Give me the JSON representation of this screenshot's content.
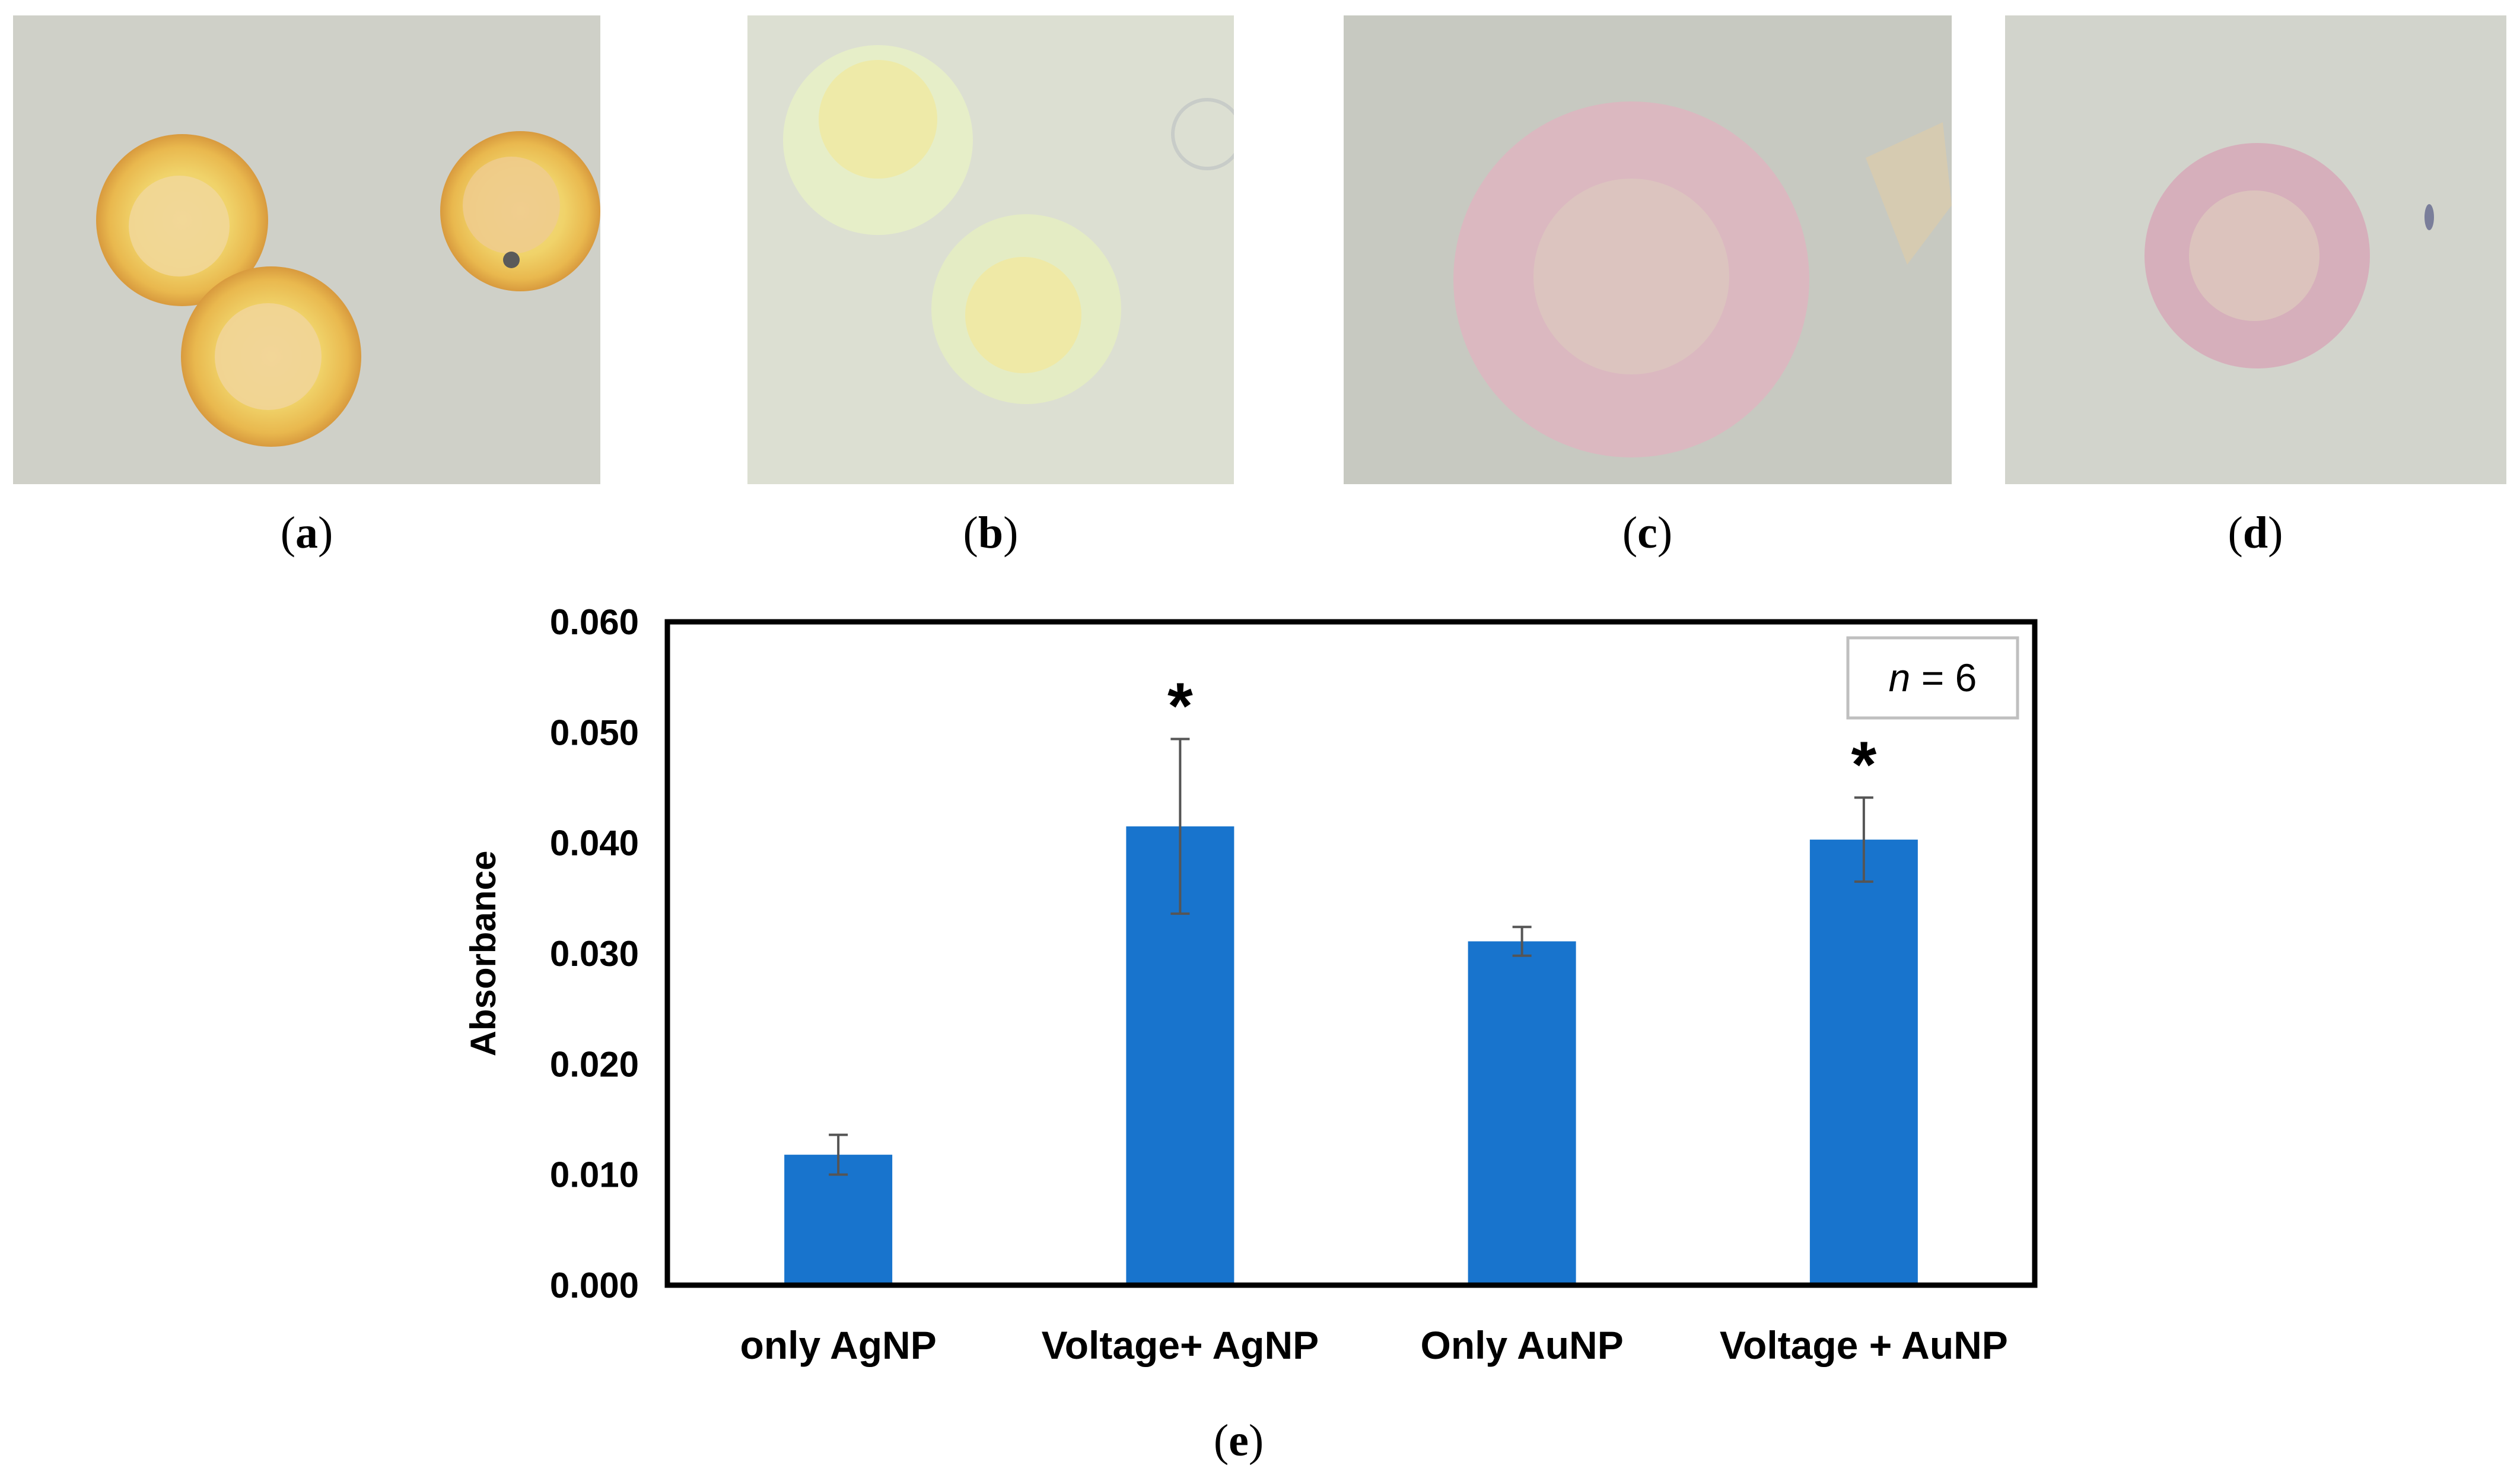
{
  "panels": {
    "a": {
      "label": "a",
      "description_icon": "droplet-photo"
    },
    "b": {
      "label": "b",
      "description_icon": "droplet-photo"
    },
    "c": {
      "label": "c",
      "description_icon": "droplet-photo"
    },
    "d": {
      "label": "d",
      "description_icon": "droplet-photo"
    },
    "e": {
      "label": "e"
    }
  },
  "colors": {
    "bar": "#1874cd",
    "error_bar": "#555555",
    "axis": "#000000",
    "legend_border": "#bfbfbf"
  },
  "chart_data": {
    "type": "bar",
    "title": "",
    "xlabel": "",
    "ylabel": "Absorbance",
    "categories": [
      "only AgNP",
      "Voltage+ AgNP",
      "Only AuNP",
      "Voltage + AuNP"
    ],
    "values": [
      0.0118,
      0.0415,
      0.0311,
      0.0403
    ],
    "errors": [
      0.0018,
      0.0079,
      0.0013,
      0.0038
    ],
    "significance": [
      "",
      "*",
      "",
      "*"
    ],
    "ylim": [
      0,
      0.06
    ],
    "yticks": [
      "0.000",
      "0.010",
      "0.020",
      "0.030",
      "0.040",
      "0.050",
      "0.060"
    ],
    "ytick_values": [
      0,
      0.01,
      0.02,
      0.03,
      0.04,
      0.05,
      0.06
    ],
    "legend": {
      "italic": "n",
      "text": " = 6",
      "position": "top-right"
    },
    "grid": false
  }
}
